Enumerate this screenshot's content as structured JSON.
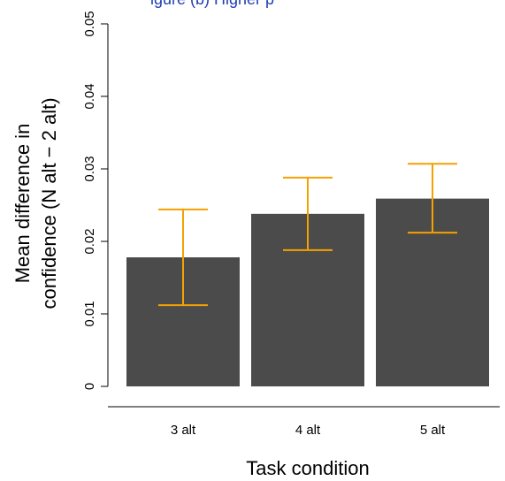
{
  "top_text": "igure (b) Higher p",
  "chart_data": {
    "type": "bar",
    "categories": [
      "3 alt",
      "4 alt",
      "5 alt"
    ],
    "values": [
      0.0178,
      0.0238,
      0.0259
    ],
    "error_low": [
      0.0112,
      0.0188,
      0.0212
    ],
    "error_high": [
      0.0244,
      0.0288,
      0.0307
    ],
    "xlabel": "Task condition",
    "ylabel_line1": "Mean difference in",
    "ylabel_line2": "confidence (N alt  − 2 alt)",
    "ylim": [
      0,
      0.05
    ],
    "yticks": [
      "0",
      "0.01",
      "0.02",
      "0.03",
      "0.04",
      "0.05"
    ],
    "ytick_values": [
      0,
      0.01,
      0.02,
      0.03,
      0.04,
      0.05
    ],
    "grid": false,
    "bar_color": "#4b4b4b",
    "error_color": "#f5a100"
  }
}
